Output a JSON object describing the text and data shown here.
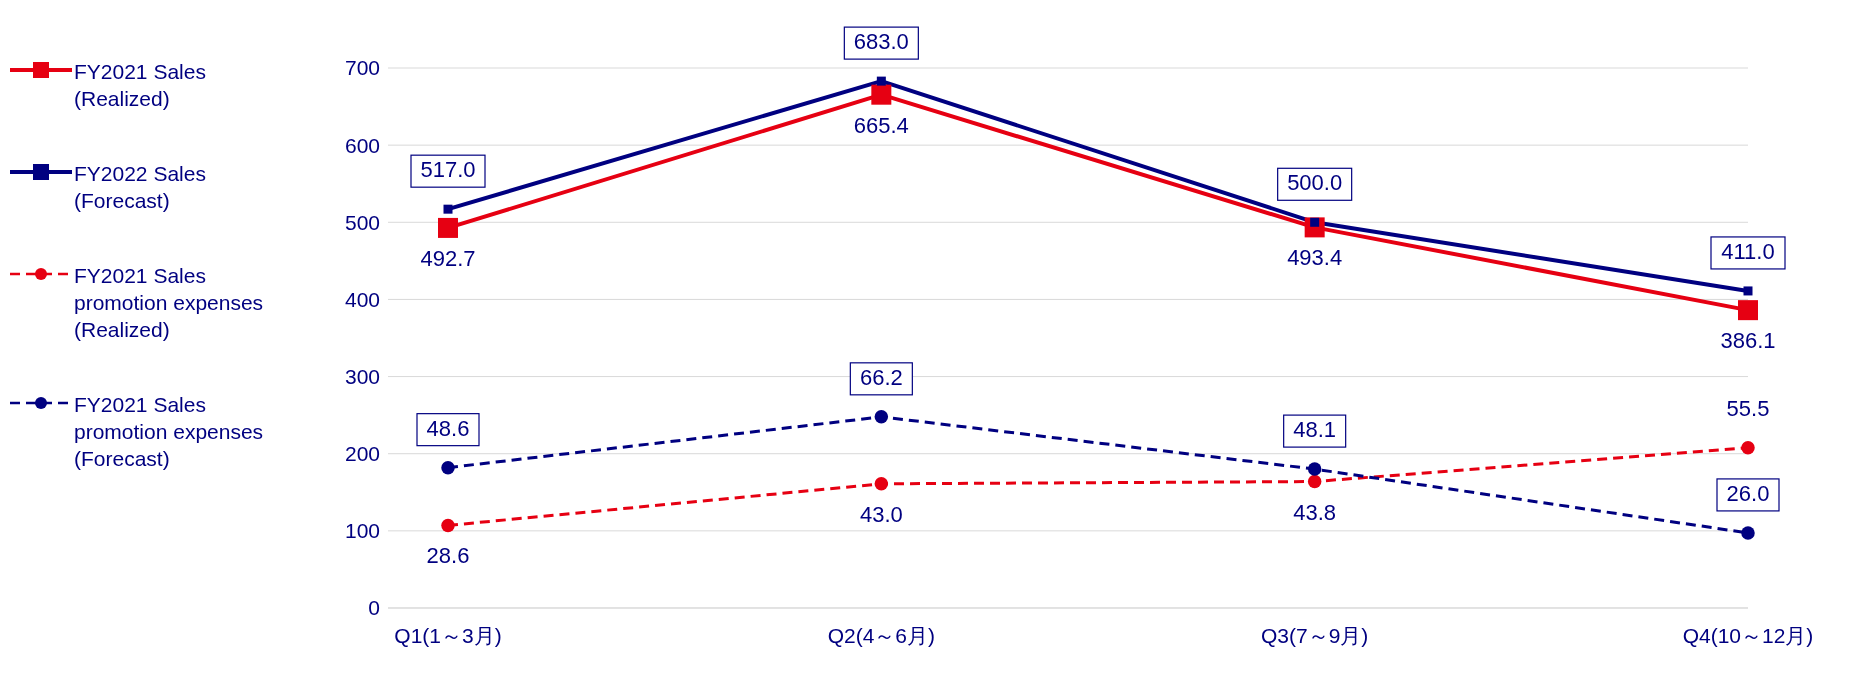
{
  "chart_data": {
    "type": "line",
    "categories": [
      "Q1(1～3月)",
      "Q2(4～6月)",
      "Q3(7～9月)",
      "Q4(10～12月)"
    ],
    "series": [
      {
        "name": "FY2021 Sales (Realized)",
        "color": "#e60012",
        "values": [
          492.7,
          665.4,
          493.4,
          386.1
        ],
        "value_labels": [
          "492.7",
          "665.4",
          "493.4",
          "386.1"
        ],
        "marker": "square",
        "line_style": "solid"
      },
      {
        "name": "FY2022 Sales (Forecast)",
        "color": "#000080",
        "values": [
          517.0,
          683.0,
          500.0,
          411.0
        ],
        "value_labels": [
          "517.0",
          "683.0",
          "500.0",
          "411.0"
        ],
        "marker": "square",
        "line_style": "solid"
      },
      {
        "name": "FY2021 Sales promotion expenses (Realized)",
        "color": "#e60012",
        "values": [
          28.6,
          43.0,
          43.8,
          55.5
        ],
        "value_labels": [
          "28.6",
          "43.0",
          "43.8",
          "55.5"
        ],
        "marker": "circle",
        "line_style": "dashed",
        "axis": "y2"
      },
      {
        "name": "FY2021 Sales promotion expenses (Forecast)",
        "color": "#000080",
        "values": [
          48.6,
          66.2,
          48.1,
          26.0
        ],
        "value_labels": [
          "48.6",
          "66.2",
          "48.1",
          "26.0"
        ],
        "marker": "circle",
        "line_style": "dashed",
        "axis": "y2"
      }
    ],
    "ylim": [
      0,
      700
    ],
    "yticks": [
      0,
      100,
      200,
      300,
      400,
      500,
      600,
      700
    ],
    "y2lim": [
      0,
      187
    ],
    "grid": "y",
    "legend": "left"
  }
}
